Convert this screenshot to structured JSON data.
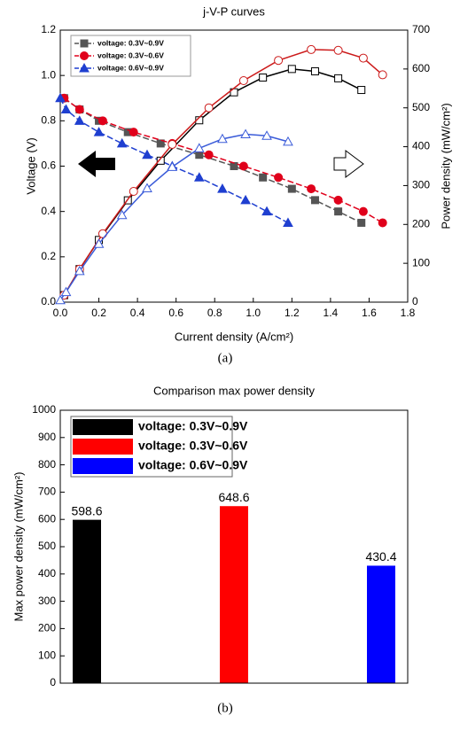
{
  "chart_data": [
    {
      "type": "line",
      "title": "j-V-P curves",
      "x_label": "Current density (A/cm²)",
      "y_label": "Voltage (V)",
      "y2_label": "Power density (mW/cm²)",
      "caption": "(a)",
      "xlim": [
        0,
        1.8
      ],
      "xticks": [
        {
          "value": 0,
          "label": "0.0"
        },
        0.2,
        0.4,
        0.6,
        0.8,
        {
          "value": 1,
          "label": "1.0"
        },
        1.2,
        1.4,
        1.6,
        1.8
      ],
      "ylim": [
        0,
        1.2
      ],
      "yticks": [
        {
          "value": 0,
          "label": "0.0"
        },
        0.2,
        0.4,
        0.6,
        0.8,
        {
          "value": 1,
          "label": "1.0"
        },
        1.2
      ],
      "y2lim": [
        0,
        700
      ],
      "y2ticks": [
        0,
        100,
        200,
        300,
        400,
        500,
        600,
        700
      ],
      "legend": "upper left",
      "series": [
        {
          "name": "voltage: 0.3V~0.9V",
          "color": "#555555",
          "marker": "square",
          "filled": true,
          "x": [
            0.02,
            0.1,
            0.2,
            0.35,
            0.52,
            0.72,
            0.9,
            1.05,
            1.2,
            1.32,
            1.44,
            1.56
          ],
          "values": [
            0.9,
            0.85,
            0.8,
            0.75,
            0.7,
            0.65,
            0.6,
            0.55,
            0.5,
            0.45,
            0.4,
            0.35
          ]
        },
        {
          "name": "voltage: 0.3V~0.6V",
          "color": "#e0001b",
          "marker": "circle",
          "filled": true,
          "x": [
            0.02,
            0.1,
            0.22,
            0.38,
            0.58,
            0.77,
            0.95,
            1.13,
            1.3,
            1.44,
            1.57,
            1.67
          ],
          "values": [
            0.9,
            0.85,
            0.8,
            0.75,
            0.7,
            0.65,
            0.6,
            0.55,
            0.5,
            0.45,
            0.4,
            0.35
          ]
        },
        {
          "name": "voltage: 0.6V~0.9V",
          "color": "#1f3fd0",
          "marker": "triangle",
          "filled": true,
          "x": [
            0.0,
            0.03,
            0.1,
            0.2,
            0.32,
            0.45,
            0.58,
            0.72,
            0.84,
            0.96,
            1.07,
            1.18
          ],
          "values": [
            0.9,
            0.85,
            0.8,
            0.75,
            0.7,
            0.65,
            0.6,
            0.55,
            0.5,
            0.45,
            0.4,
            0.35
          ]
        },
        {
          "color": "#000000",
          "marker": "square",
          "filled": false,
          "axis": "y2",
          "x": [
            0.02,
            0.1,
            0.2,
            0.35,
            0.52,
            0.72,
            0.9,
            1.05,
            1.2,
            1.32,
            1.44,
            1.56
          ],
          "values": [
            18,
            85,
            160,
            262,
            364,
            468,
            540,
            578,
            600,
            594,
            576,
            546
          ]
        },
        {
          "color": "#cc1a1a",
          "marker": "circle",
          "filled": false,
          "axis": "y2",
          "x": [
            0.02,
            0.1,
            0.22,
            0.38,
            0.58,
            0.77,
            0.95,
            1.13,
            1.3,
            1.44,
            1.57,
            1.67
          ],
          "values": [
            18,
            85,
            176,
            285,
            406,
            500,
            570,
            622,
            650,
            648,
            628,
            585
          ]
        },
        {
          "color": "#3a5bd9",
          "marker": "triangle",
          "filled": false,
          "axis": "y2",
          "x": [
            0.0,
            0.03,
            0.1,
            0.2,
            0.32,
            0.45,
            0.58,
            0.72,
            0.84,
            0.96,
            1.07,
            1.18
          ],
          "values": [
            5,
            26,
            80,
            150,
            224,
            293,
            348,
            396,
            420,
            432,
            428,
            413
          ]
        }
      ]
    },
    {
      "type": "bar",
      "title": "Comparison max power density",
      "y_label": "Max power density (mW/cm²)",
      "caption": "(b)",
      "ylim": [
        0,
        1000
      ],
      "yticks": [
        0,
        100,
        200,
        300,
        400,
        500,
        600,
        700,
        800,
        900,
        1000
      ],
      "legend": "upper left",
      "series": [
        {
          "name": "voltage: 0.3V~0.9V",
          "color": "#000000",
          "values": [
            598.6
          ]
        },
        {
          "name": "voltage: 0.3V~0.6V",
          "color": "#ff0000",
          "values": [
            648.6
          ]
        },
        {
          "name": "voltage: 0.6V~0.9V",
          "color": "#0000ff",
          "values": [
            430.4
          ]
        }
      ]
    }
  ]
}
